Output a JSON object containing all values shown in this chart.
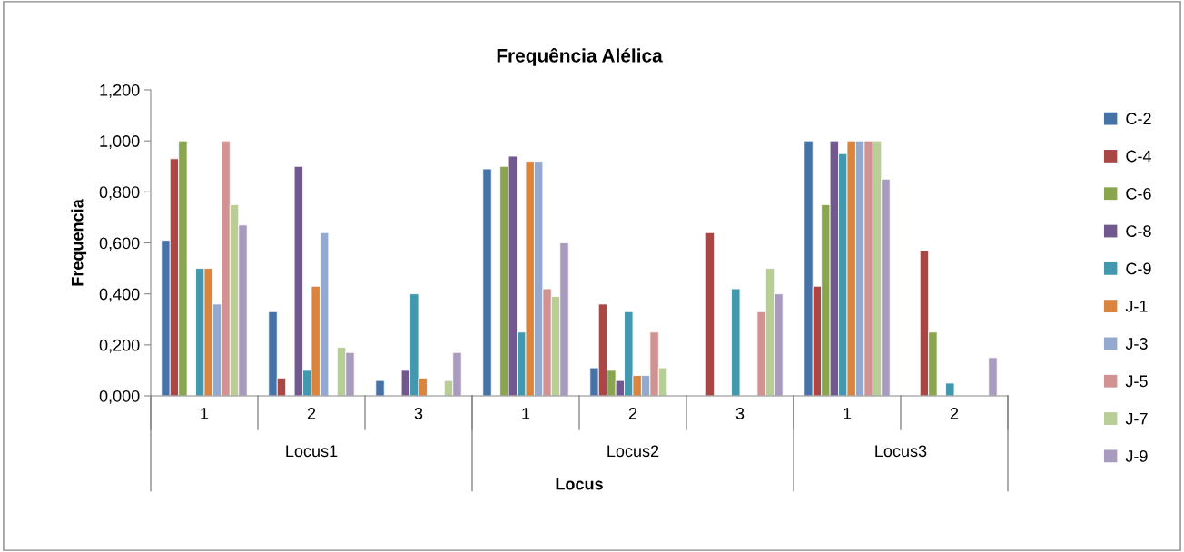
{
  "chart_data": {
    "type": "bar",
    "title": "Frequência Alélica",
    "xlabel": "Locus",
    "ylabel": "Frequencia",
    "categories": [
      "1",
      "2",
      "3",
      "1",
      "2",
      "3",
      "1",
      "2"
    ],
    "annotations": [
      "Locus1",
      "Locus2",
      "Locus3"
    ],
    "ylim": [
      0,
      1.2
    ],
    "yticks": [
      {
        "value": 0,
        "label": "0,000"
      },
      {
        "value": 0.2,
        "label": "0,200"
      },
      {
        "value": 0.4,
        "label": "0,400"
      },
      {
        "value": 0.6,
        "label": "0,600"
      },
      {
        "value": 0.8,
        "label": "0,800"
      },
      {
        "value": 1.0,
        "label": "1,000"
      },
      {
        "value": 1.2,
        "label": "1,200"
      }
    ],
    "grid": false,
    "legend": "right",
    "series": [
      {
        "name": "C-2",
        "color": "#4572a7",
        "values": [
          0.61,
          0.33,
          0.06,
          0.89,
          0.11,
          null,
          1.0,
          null
        ]
      },
      {
        "name": "C-4",
        "color": "#aa4643",
        "values": [
          0.93,
          0.07,
          null,
          null,
          0.36,
          0.64,
          0.43,
          0.57
        ]
      },
      {
        "name": "C-6",
        "color": "#89a54e",
        "values": [
          1.0,
          null,
          null,
          0.9,
          0.1,
          null,
          0.75,
          0.25
        ]
      },
      {
        "name": "C-8",
        "color": "#71588f",
        "values": [
          null,
          0.9,
          0.1,
          0.94,
          0.06,
          null,
          1.0,
          null
        ]
      },
      {
        "name": "C-9",
        "color": "#4198af",
        "values": [
          0.5,
          0.1,
          0.4,
          0.25,
          0.33,
          0.42,
          0.95,
          0.05
        ]
      },
      {
        "name": "J-1",
        "color": "#db843d",
        "values": [
          0.5,
          0.43,
          0.07,
          0.92,
          0.08,
          null,
          1.0,
          null
        ]
      },
      {
        "name": "J-3",
        "color": "#93a9cf",
        "values": [
          0.36,
          0.64,
          null,
          0.92,
          0.08,
          null,
          1.0,
          null
        ]
      },
      {
        "name": "J-5",
        "color": "#d19392",
        "values": [
          1.0,
          null,
          null,
          0.42,
          0.25,
          0.33,
          1.0,
          null
        ]
      },
      {
        "name": "J-7",
        "color": "#b9cd96",
        "values": [
          0.75,
          0.19,
          0.06,
          0.39,
          0.11,
          0.5,
          1.0,
          null
        ]
      },
      {
        "name": "J-9",
        "color": "#a99bbd",
        "values": [
          0.67,
          0.17,
          0.17,
          0.6,
          null,
          0.4,
          0.85,
          0.15
        ]
      }
    ]
  }
}
